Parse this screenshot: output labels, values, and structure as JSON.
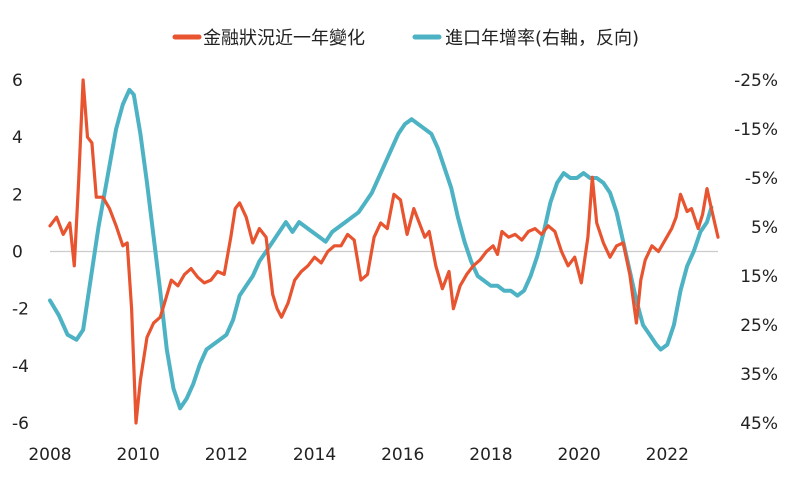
{
  "chart_data": {
    "type": "line",
    "title": "",
    "legend_position": "top-center",
    "grid": false,
    "series": [
      {
        "name": "金融狀況近一年變化",
        "axis": "left",
        "color": "#e8542f",
        "points": [
          [
            2008.0,
            0.9
          ],
          [
            2008.15,
            1.2
          ],
          [
            2008.3,
            0.6
          ],
          [
            2008.45,
            1.0
          ],
          [
            2008.55,
            -0.5
          ],
          [
            2008.65,
            2.5
          ],
          [
            2008.75,
            6.0
          ],
          [
            2008.85,
            4.0
          ],
          [
            2008.95,
            3.8
          ],
          [
            2009.05,
            1.9
          ],
          [
            2009.2,
            1.9
          ],
          [
            2009.35,
            1.5
          ],
          [
            2009.5,
            0.9
          ],
          [
            2009.65,
            0.2
          ],
          [
            2009.75,
            0.3
          ],
          [
            2009.85,
            -2.0
          ],
          [
            2009.95,
            -6.0
          ],
          [
            2010.05,
            -4.5
          ],
          [
            2010.2,
            -3.0
          ],
          [
            2010.35,
            -2.5
          ],
          [
            2010.5,
            -2.3
          ],
          [
            2010.6,
            -1.8
          ],
          [
            2010.75,
            -1.0
          ],
          [
            2010.9,
            -1.2
          ],
          [
            2011.05,
            -0.8
          ],
          [
            2011.2,
            -0.6
          ],
          [
            2011.35,
            -0.9
          ],
          [
            2011.5,
            -1.1
          ],
          [
            2011.65,
            -1.0
          ],
          [
            2011.8,
            -0.7
          ],
          [
            2011.95,
            -0.8
          ],
          [
            2012.1,
            0.5
          ],
          [
            2012.2,
            1.5
          ],
          [
            2012.3,
            1.7
          ],
          [
            2012.45,
            1.2
          ],
          [
            2012.6,
            0.3
          ],
          [
            2012.75,
            0.8
          ],
          [
            2012.9,
            0.5
          ],
          [
            2013.05,
            -1.5
          ],
          [
            2013.15,
            -2.0
          ],
          [
            2013.25,
            -2.3
          ],
          [
            2013.4,
            -1.8
          ],
          [
            2013.55,
            -1.0
          ],
          [
            2013.7,
            -0.7
          ],
          [
            2013.85,
            -0.5
          ],
          [
            2014.0,
            -0.2
          ],
          [
            2014.15,
            -0.4
          ],
          [
            2014.3,
            0.0
          ],
          [
            2014.45,
            0.2
          ],
          [
            2014.6,
            0.2
          ],
          [
            2014.75,
            0.6
          ],
          [
            2014.9,
            0.4
          ],
          [
            2015.05,
            -1.0
          ],
          [
            2015.2,
            -0.8
          ],
          [
            2015.35,
            0.5
          ],
          [
            2015.5,
            1.0
          ],
          [
            2015.65,
            0.8
          ],
          [
            2015.8,
            2.0
          ],
          [
            2015.95,
            1.8
          ],
          [
            2016.1,
            0.6
          ],
          [
            2016.25,
            1.5
          ],
          [
            2016.35,
            1.1
          ],
          [
            2016.5,
            0.5
          ],
          [
            2016.6,
            0.7
          ],
          [
            2016.75,
            -0.5
          ],
          [
            2016.9,
            -1.3
          ],
          [
            2017.05,
            -0.7
          ],
          [
            2017.15,
            -2.0
          ],
          [
            2017.3,
            -1.2
          ],
          [
            2017.45,
            -0.8
          ],
          [
            2017.6,
            -0.5
          ],
          [
            2017.75,
            -0.3
          ],
          [
            2017.9,
            0.0
          ],
          [
            2018.05,
            0.2
          ],
          [
            2018.15,
            -0.1
          ],
          [
            2018.25,
            0.7
          ],
          [
            2018.4,
            0.5
          ],
          [
            2018.55,
            0.6
          ],
          [
            2018.7,
            0.4
          ],
          [
            2018.85,
            0.7
          ],
          [
            2019.0,
            0.8
          ],
          [
            2019.15,
            0.6
          ],
          [
            2019.3,
            0.9
          ],
          [
            2019.45,
            0.7
          ],
          [
            2019.6,
            0.0
          ],
          [
            2019.75,
            -0.5
          ],
          [
            2019.9,
            -0.2
          ],
          [
            2020.05,
            -1.1
          ],
          [
            2020.2,
            0.5
          ],
          [
            2020.3,
            2.6
          ],
          [
            2020.4,
            1.0
          ],
          [
            2020.55,
            0.3
          ],
          [
            2020.7,
            -0.2
          ],
          [
            2020.85,
            0.2
          ],
          [
            2021.0,
            0.3
          ],
          [
            2021.15,
            -0.8
          ],
          [
            2021.3,
            -2.5
          ],
          [
            2021.4,
            -1.0
          ],
          [
            2021.5,
            -0.3
          ],
          [
            2021.65,
            0.2
          ],
          [
            2021.8,
            0.0
          ],
          [
            2021.95,
            0.4
          ],
          [
            2022.1,
            0.8
          ],
          [
            2022.2,
            1.2
          ],
          [
            2022.3,
            2.0
          ],
          [
            2022.45,
            1.4
          ],
          [
            2022.55,
            1.5
          ],
          [
            2022.7,
            0.8
          ],
          [
            2022.8,
            1.3
          ],
          [
            2022.9,
            2.2
          ],
          [
            2023.0,
            1.5
          ],
          [
            2023.15,
            0.5
          ]
        ]
      },
      {
        "name": "進口年增率(右軸，反向)",
        "axis": "right",
        "color": "#4db3c4",
        "points": [
          [
            2008.0,
            20
          ],
          [
            2008.2,
            23
          ],
          [
            2008.4,
            27
          ],
          [
            2008.6,
            28
          ],
          [
            2008.75,
            26
          ],
          [
            2008.9,
            17
          ],
          [
            2009.1,
            5
          ],
          [
            2009.3,
            -5
          ],
          [
            2009.5,
            -15
          ],
          [
            2009.65,
            -20
          ],
          [
            2009.8,
            -23
          ],
          [
            2009.9,
            -22
          ],
          [
            2010.05,
            -14
          ],
          [
            2010.2,
            -4
          ],
          [
            2010.35,
            7
          ],
          [
            2010.5,
            18
          ],
          [
            2010.65,
            30
          ],
          [
            2010.8,
            38
          ],
          [
            2010.95,
            42
          ],
          [
            2011.1,
            40
          ],
          [
            2011.25,
            37
          ],
          [
            2011.4,
            33
          ],
          [
            2011.55,
            30
          ],
          [
            2011.7,
            29
          ],
          [
            2011.85,
            28
          ],
          [
            2012.0,
            27
          ],
          [
            2012.15,
            24
          ],
          [
            2012.3,
            19
          ],
          [
            2012.45,
            17
          ],
          [
            2012.6,
            15
          ],
          [
            2012.75,
            12
          ],
          [
            2012.9,
            10
          ],
          [
            2013.05,
            8
          ],
          [
            2013.2,
            6
          ],
          [
            2013.35,
            4
          ],
          [
            2013.5,
            6
          ],
          [
            2013.65,
            4
          ],
          [
            2013.8,
            5
          ],
          [
            2013.95,
            6
          ],
          [
            2014.1,
            7
          ],
          [
            2014.25,
            8
          ],
          [
            2014.4,
            6
          ],
          [
            2014.55,
            5
          ],
          [
            2014.7,
            4
          ],
          [
            2014.85,
            3
          ],
          [
            2015.0,
            2
          ],
          [
            2015.15,
            0
          ],
          [
            2015.3,
            -2
          ],
          [
            2015.45,
            -5
          ],
          [
            2015.6,
            -8
          ],
          [
            2015.75,
            -11
          ],
          [
            2015.9,
            -14
          ],
          [
            2016.05,
            -16
          ],
          [
            2016.2,
            -17
          ],
          [
            2016.35,
            -16
          ],
          [
            2016.5,
            -15
          ],
          [
            2016.65,
            -14
          ],
          [
            2016.8,
            -11
          ],
          [
            2016.95,
            -7
          ],
          [
            2017.1,
            -3
          ],
          [
            2017.25,
            3
          ],
          [
            2017.4,
            8
          ],
          [
            2017.55,
            12
          ],
          [
            2017.7,
            15
          ],
          [
            2017.85,
            16
          ],
          [
            2018.0,
            17
          ],
          [
            2018.15,
            17
          ],
          [
            2018.3,
            18
          ],
          [
            2018.45,
            18
          ],
          [
            2018.6,
            19
          ],
          [
            2018.75,
            18
          ],
          [
            2018.9,
            15
          ],
          [
            2019.05,
            11
          ],
          [
            2019.2,
            6
          ],
          [
            2019.35,
            0
          ],
          [
            2019.5,
            -4
          ],
          [
            2019.65,
            -6
          ],
          [
            2019.8,
            -5
          ],
          [
            2019.95,
            -5
          ],
          [
            2020.1,
            -6
          ],
          [
            2020.25,
            -5
          ],
          [
            2020.4,
            -5
          ],
          [
            2020.55,
            -4
          ],
          [
            2020.7,
            -2
          ],
          [
            2020.85,
            2
          ],
          [
            2021.0,
            8
          ],
          [
            2021.15,
            14
          ],
          [
            2021.3,
            20
          ],
          [
            2021.45,
            25
          ],
          [
            2021.6,
            27
          ],
          [
            2021.75,
            29
          ],
          [
            2021.85,
            30
          ],
          [
            2022.0,
            29
          ],
          [
            2022.15,
            25
          ],
          [
            2022.3,
            18
          ],
          [
            2022.45,
            13
          ],
          [
            2022.6,
            10
          ],
          [
            2022.75,
            6
          ],
          [
            2022.9,
            4
          ],
          [
            2023.0,
            1
          ]
        ]
      }
    ],
    "x_axis": {
      "range": [
        2008,
        2023.15
      ],
      "ticks": [
        2008,
        2010,
        2012,
        2014,
        2016,
        2018,
        2020,
        2022
      ]
    },
    "y_left": {
      "range": [
        -6,
        6
      ],
      "ticks": [
        6,
        4,
        2,
        0,
        -2,
        -4,
        -6
      ],
      "tick_labels": [
        "6",
        "4",
        "2",
        "0",
        "-2",
        "-4",
        "-6"
      ]
    },
    "y_right": {
      "range": [
        -25,
        45
      ],
      "reversed": true,
      "ticks": [
        -25,
        -15,
        -5,
        5,
        15,
        25,
        35,
        45
      ],
      "tick_labels": [
        "-25%",
        "-15%",
        "-5%",
        "5%",
        "15%",
        "25%",
        "35%",
        "45%"
      ]
    },
    "zero_line": {
      "value": 0,
      "color": "#cccccc"
    }
  }
}
